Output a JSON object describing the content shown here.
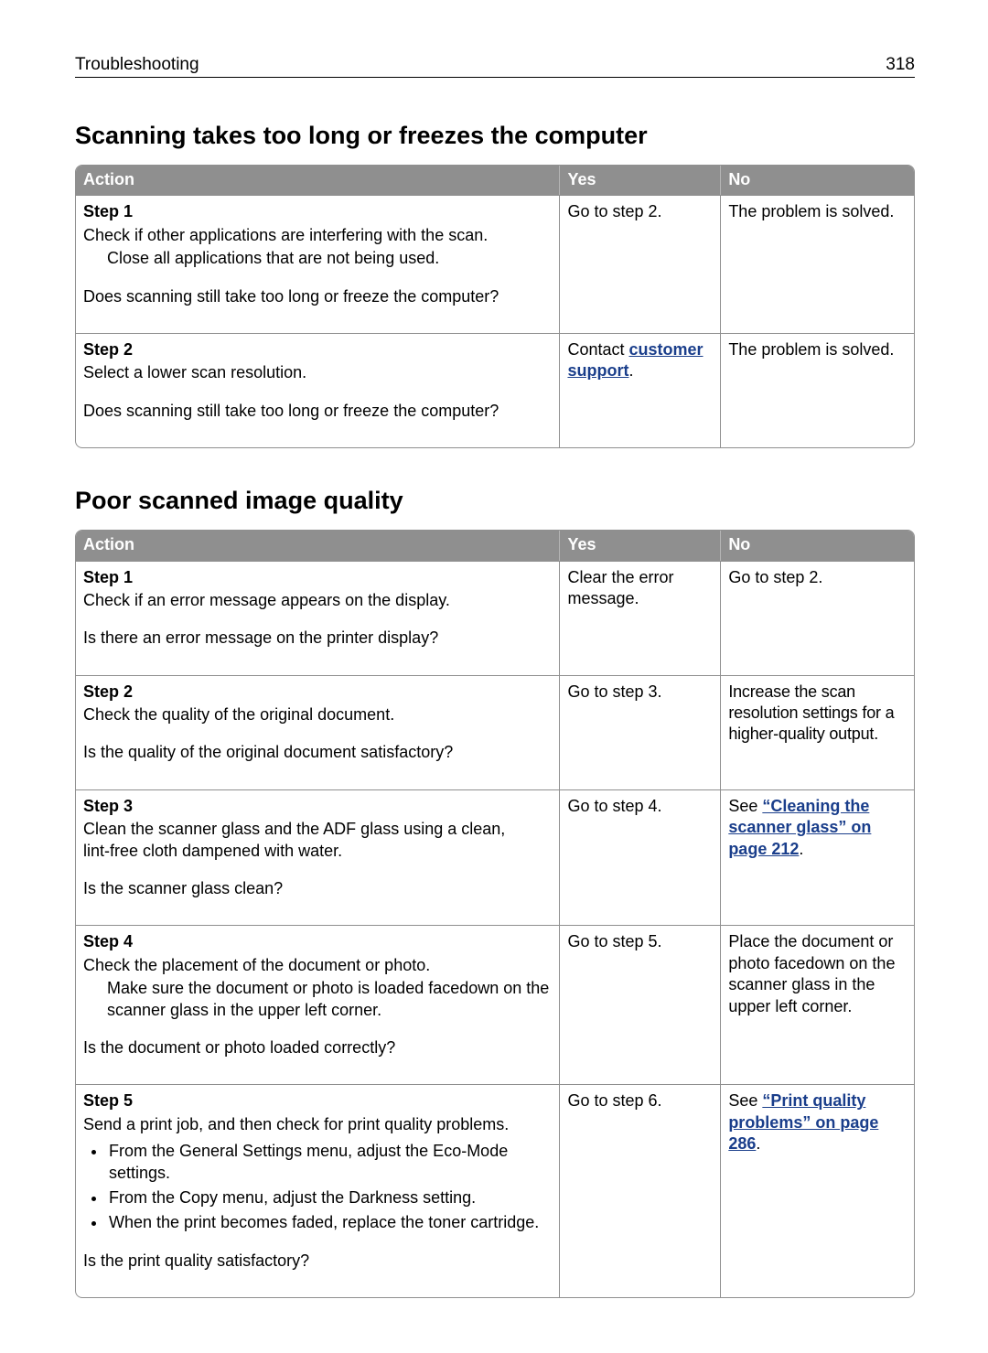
{
  "page": {
    "running_header_title": "Troubleshooting",
    "page_number": "318"
  },
  "sections": [
    {
      "heading": "Scanning takes too long or freezes the computer",
      "columns": {
        "action": "Action",
        "yes": "Yes",
        "no": "No"
      },
      "rows": [
        {
          "step": "Step 1",
          "action_main": "Check if other applications are interfering with the scan.",
          "action_indent": "Close all applications that are not being used.",
          "question": "Does scanning still take too long or freeze the computer?",
          "yes_plain": "Go to step 2.",
          "no_plain": "The problem is solved."
        },
        {
          "step": "Step 2",
          "action_main": "Select a lower scan resolution.",
          "question": "Does scanning still take too long or freeze the computer?",
          "yes_pre": "Contact ",
          "yes_link": "customer support",
          "yes_post": ".",
          "no_plain": "The problem is solved."
        }
      ]
    },
    {
      "heading": "Poor scanned image quality",
      "columns": {
        "action": "Action",
        "yes": "Yes",
        "no": "No"
      },
      "rows": [
        {
          "step": "Step 1",
          "action_main": "Check if an error message appears on the display.",
          "question": "Is there an error message on the printer display?",
          "yes_plain": "Clear the error message.",
          "no_plain": "Go to step 2."
        },
        {
          "step": "Step 2",
          "action_main": "Check the quality of the original document.",
          "question": "Is the quality of the original document satisfactory?",
          "yes_plain": "Go to step 3.",
          "no_plain": "Increase the scan resolution settings for a higher‑quality output."
        },
        {
          "step": "Step 3",
          "action_main": "Clean the scanner glass and the ADF glass using a clean, lint‑free cloth dampened with water.",
          "question": "Is the scanner glass clean?",
          "yes_plain": "Go to step 4.",
          "no_pre": "See ",
          "no_link": "“Cleaning the scanner glass” on page 212",
          "no_post": "."
        },
        {
          "step": "Step 4",
          "action_main": "Check the placement of the document or photo.",
          "action_indent": "Make sure the document or photo is loaded facedown on the scanner glass in the upper left corner.",
          "question": "Is the document or photo loaded correctly?",
          "yes_plain": "Go to step 5.",
          "no_plain": "Place the document or photo facedown on the scanner glass in the upper left corner."
        },
        {
          "step": "Step 5",
          "action_main": "Send a print job, and then check for print quality problems.",
          "bullets": [
            "From the General Settings menu, adjust the Eco‑Mode settings.",
            "From the Copy menu, adjust the Darkness setting.",
            "When the print becomes faded, replace the toner cartridge."
          ],
          "question": "Is the print quality satisfactory?",
          "yes_plain": "Go to step 6.",
          "no_pre": "See ",
          "no_link": "“Print quality problems” on page 286",
          "no_post": "."
        }
      ]
    }
  ]
}
